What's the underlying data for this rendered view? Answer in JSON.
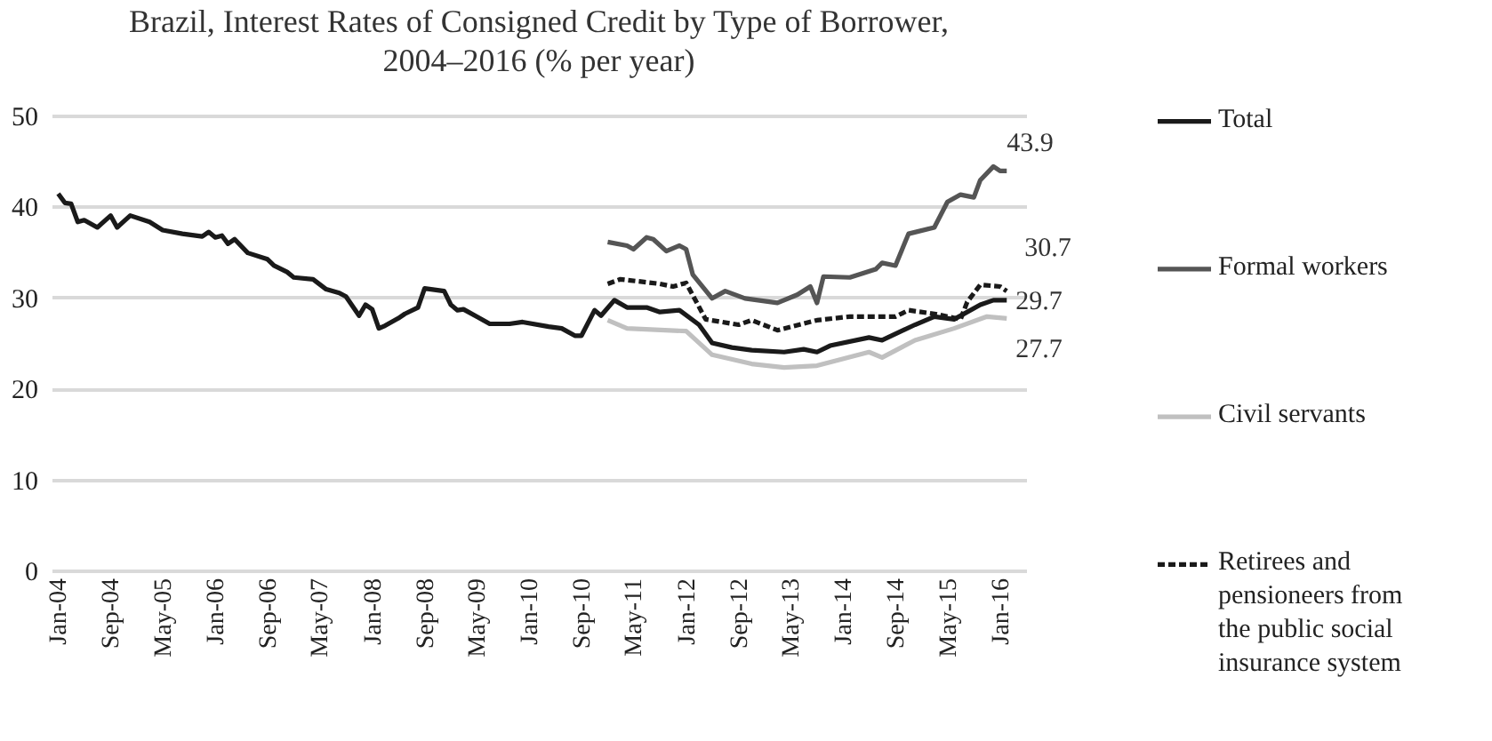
{
  "chart_data": {
    "type": "line",
    "title": "Brazil, Interest Rates of Consigned Credit by Type of Borrower, 2004–2016 (% per year)",
    "xlim": [
      "2003-12",
      "2016-05"
    ],
    "xticks": [
      {
        "value": "2004-01",
        "label": "Jan-04"
      },
      {
        "value": "2004-09",
        "label": "Sep-04"
      },
      {
        "value": "2005-05",
        "label": "May-05"
      },
      {
        "value": "2006-01",
        "label": "Jan-06"
      },
      {
        "value": "2006-09",
        "label": "Sep-06"
      },
      {
        "value": "2007-05",
        "label": "May-07"
      },
      {
        "value": "2008-01",
        "label": "Jan-08"
      },
      {
        "value": "2008-09",
        "label": "Sep-08"
      },
      {
        "value": "2009-05",
        "label": "May-09"
      },
      {
        "value": "2010-01",
        "label": "Jan-10"
      },
      {
        "value": "2010-09",
        "label": "Sep-10"
      },
      {
        "value": "2011-05",
        "label": "May-11"
      },
      {
        "value": "2012-01",
        "label": "Jan-12"
      },
      {
        "value": "2012-09",
        "label": "Sep-12"
      },
      {
        "value": "2013-05",
        "label": "May-13"
      },
      {
        "value": "2014-01",
        "label": "Jan-14"
      },
      {
        "value": "2014-09",
        "label": "Sep-14"
      },
      {
        "value": "2015-05",
        "label": "May-15"
      },
      {
        "value": "2016-01",
        "label": "Jan-16"
      }
    ],
    "ylim": [
      0,
      50
    ],
    "yticks": [
      0,
      10,
      20,
      30,
      40,
      50
    ],
    "grid": "y",
    "legend": "right",
    "series": [
      {
        "name": "Total",
        "color": "#1a1a1a",
        "x": [
          "2004-01",
          "2004-02",
          "2004-03",
          "2004-04",
          "2004-05",
          "2004-07",
          "2004-09",
          "2004-10",
          "2004-12",
          "2005-03",
          "2005-05",
          "2005-08",
          "2005-11",
          "2005-12",
          "2006-01",
          "2006-02",
          "2006-03",
          "2006-04",
          "2006-06",
          "2006-09",
          "2006-10",
          "2006-12",
          "2007-01",
          "2007-04",
          "2007-06",
          "2007-08",
          "2007-09",
          "2007-11",
          "2007-12",
          "2008-01",
          "2008-02",
          "2008-03",
          "2008-05",
          "2008-06",
          "2008-08",
          "2008-09",
          "2008-12",
          "2009-01",
          "2009-02",
          "2009-03",
          "2009-05",
          "2009-07",
          "2009-10",
          "2009-12",
          "2010-04",
          "2010-06",
          "2010-08",
          "2010-09",
          "2010-11",
          "2010-12",
          "2011-02",
          "2011-04",
          "2011-07",
          "2011-09",
          "2011-12",
          "2012-03",
          "2012-05",
          "2012-08",
          "2012-11",
          "2013-04",
          "2013-07",
          "2013-09",
          "2013-11",
          "2014-05",
          "2014-07",
          "2014-12",
          "2015-03",
          "2015-06",
          "2015-10",
          "2015-12",
          "2016-02"
        ],
        "values": [
          41.4,
          40.4,
          40.3,
          38.3,
          38.5,
          37.7,
          39.0,
          37.7,
          39.0,
          38.3,
          37.4,
          37.0,
          36.7,
          37.2,
          36.6,
          36.8,
          35.9,
          36.4,
          34.9,
          34.2,
          33.5,
          32.8,
          32.2,
          32.0,
          30.9,
          30.5,
          30.1,
          28.0,
          29.2,
          28.7,
          26.6,
          26.9,
          27.7,
          28.2,
          28.9,
          31.0,
          30.7,
          29.2,
          28.6,
          28.7,
          27.9,
          27.1,
          27.1,
          27.3,
          26.8,
          26.6,
          25.8,
          25.8,
          28.6,
          28.0,
          29.7,
          28.9,
          28.9,
          28.4,
          28.6,
          27.0,
          25.0,
          24.5,
          24.2,
          24.0,
          24.3,
          24.0,
          24.7,
          25.6,
          25.3,
          27.0,
          27.9,
          27.6,
          29.2,
          29.7,
          29.7
        ]
      },
      {
        "name": "Formal workers",
        "color": "#555555",
        "x": [
          "2011-01",
          "2011-04",
          "2011-05",
          "2011-07",
          "2011-08",
          "2011-10",
          "2011-12",
          "2012-01",
          "2012-02",
          "2012-05",
          "2012-07",
          "2012-10",
          "2013-03",
          "2013-06",
          "2013-08",
          "2013-09",
          "2013-10",
          "2014-02",
          "2014-06",
          "2014-07",
          "2014-09",
          "2014-11",
          "2015-03",
          "2015-05",
          "2015-07",
          "2015-09",
          "2015-10",
          "2015-12",
          "2016-01",
          "2016-02"
        ],
        "values": [
          36.1,
          35.7,
          35.3,
          36.6,
          36.4,
          35.1,
          35.7,
          35.3,
          32.5,
          29.9,
          30.7,
          29.9,
          29.4,
          30.3,
          31.2,
          29.4,
          32.3,
          32.2,
          33.1,
          33.8,
          33.5,
          37.0,
          37.7,
          40.5,
          41.3,
          41.0,
          42.9,
          44.4,
          43.9,
          43.9
        ]
      },
      {
        "name": "Civil servants",
        "color": "#c0c0c0",
        "x": [
          "2011-01",
          "2011-04",
          "2012-01",
          "2012-05",
          "2012-11",
          "2013-04",
          "2013-09",
          "2014-05",
          "2014-07",
          "2014-12",
          "2015-06",
          "2015-11",
          "2016-02"
        ],
        "values": [
          27.5,
          26.6,
          26.3,
          23.7,
          22.7,
          22.3,
          22.5,
          24.0,
          23.4,
          25.3,
          26.6,
          27.9,
          27.7
        ]
      },
      {
        "name": "Retirees and pensioneers from the public social insurance system",
        "color": "#1a1a1a",
        "line_style": "dashed",
        "x": [
          "2011-01",
          "2011-03",
          "2011-09",
          "2011-11",
          "2012-01",
          "2012-04",
          "2012-09",
          "2012-11",
          "2013-03",
          "2013-09",
          "2014-02",
          "2014-09",
          "2014-11",
          "2015-03",
          "2015-07",
          "2015-08",
          "2015-10",
          "2016-01",
          "2016-02"
        ],
        "values": [
          31.5,
          32.0,
          31.5,
          31.2,
          31.6,
          27.6,
          27.0,
          27.5,
          26.4,
          27.5,
          27.9,
          27.9,
          28.6,
          28.2,
          27.6,
          29.5,
          31.4,
          31.2,
          30.7
        ]
      }
    ],
    "annotations": [
      {
        "text": "43.9",
        "x": "2016-02",
        "y": 43.9
      },
      {
        "text": "30.7",
        "x": "2016-02",
        "y": 30.7
      },
      {
        "text": "29.7",
        "x": "2016-02",
        "y": 29.7
      },
      {
        "text": "27.7",
        "x": "2016-02",
        "y": 27.7
      }
    ]
  }
}
